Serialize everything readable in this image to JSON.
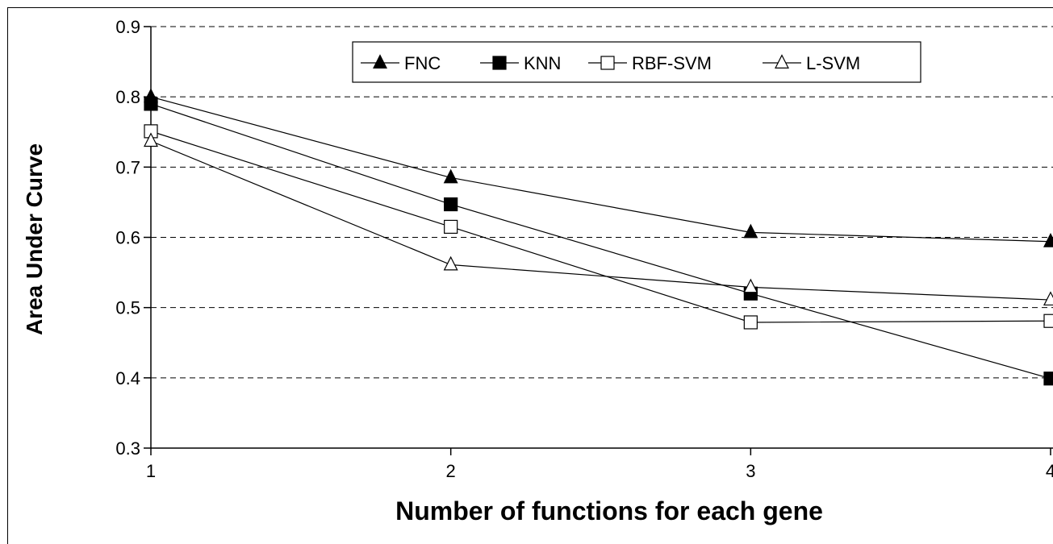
{
  "chart_data": {
    "type": "line",
    "title": "",
    "xlabel": "Number of functions for each gene",
    "ylabel": "Area Under Curve",
    "x": [
      1,
      2,
      3,
      4
    ],
    "x_tick_labels": [
      "1",
      "2",
      "3",
      "4"
    ],
    "ylim": [
      0.3,
      0.9
    ],
    "y_ticks": [
      0.3,
      0.4,
      0.5,
      0.6,
      0.7,
      0.8,
      0.9
    ],
    "y_tick_labels": [
      "0.3",
      "0.4",
      "0.5",
      "0.6",
      "0.7",
      "0.8",
      "0.9"
    ],
    "grid": "horizontal dashed",
    "legend_position": "top",
    "series": [
      {
        "name": "FNC",
        "marker": "filled-triangle",
        "values": [
          0.8,
          0.685,
          0.607,
          0.594
        ]
      },
      {
        "name": "KNN",
        "marker": "filled-square",
        "values": [
          0.79,
          0.647,
          0.52,
          0.399
        ]
      },
      {
        "name": "RBF-SVM",
        "marker": "open-square",
        "values": [
          0.751,
          0.615,
          0.479,
          0.481
        ]
      },
      {
        "name": "L-SVM",
        "marker": "open-triangle",
        "values": [
          0.737,
          0.561,
          0.529,
          0.511
        ]
      }
    ]
  }
}
